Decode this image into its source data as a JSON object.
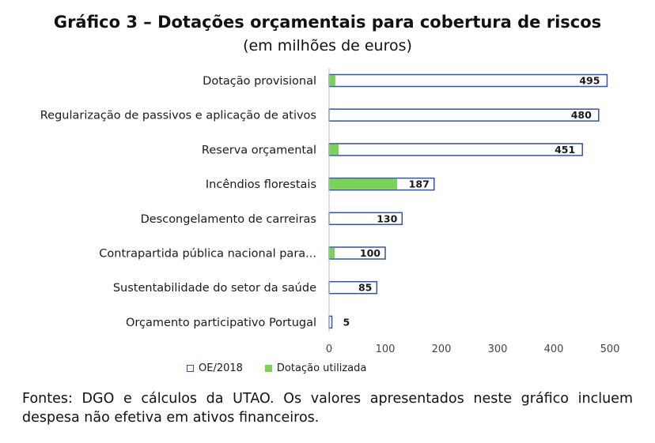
{
  "chart_data": {
    "type": "bar",
    "orientation": "horizontal",
    "title": "Gráfico 3 – Dotações orçamentais para cobertura de riscos",
    "subtitle": "(em milhões de euros)",
    "categories": [
      "Dotação provisional",
      "Regularização de passivos e aplicação de ativos",
      "Reserva orçamental",
      "Incêndios florestais",
      "Descongelamento de carreiras",
      "Contrapartida pública nacional para...",
      "Sustentabilidade do setor da saúde",
      "Orçamento participativo Portugal"
    ],
    "series": [
      {
        "name": "OE/2018",
        "values": [
          495,
          480,
          451,
          187,
          130,
          100,
          85,
          5
        ],
        "color": "#2f55a4"
      },
      {
        "name": "Dotação utilizada",
        "values": [
          10,
          0,
          16,
          120,
          0,
          9,
          0,
          0
        ],
        "color": "#7cd257"
      }
    ],
    "data_labels": [
      "495",
      "480",
      "451",
      "187",
      "130",
      "100",
      "85",
      "5"
    ],
    "xlim": [
      0,
      500
    ],
    "xticks": [
      "0",
      "100",
      "200",
      "300",
      "400",
      "500"
    ],
    "grid": false,
    "legend_position": "bottom"
  },
  "legend": {
    "oe_label": "OE/2018",
    "used_label": "Dotação utilizada"
  },
  "footer": {
    "text": "Fontes: DGO e cálculos da UTAO. Os valores apresentados neste gráfico incluem despesa não efetiva em ativos financeiros."
  }
}
